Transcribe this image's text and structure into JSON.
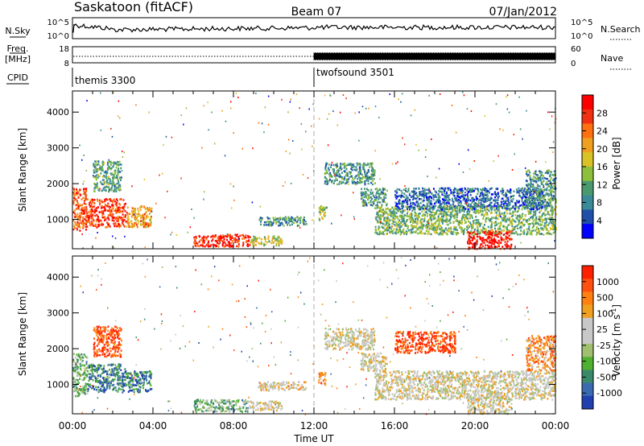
{
  "header": {
    "station": "Saskatoon (fitACF)",
    "beam": "Beam 07",
    "date": "07/Jan/2012"
  },
  "noise_panel": {
    "left_label": "N.Sky",
    "left_ticks": [
      "10^5",
      "10^0"
    ],
    "right_label": "N.Search",
    "right_ticks": [
      "10^5",
      "10^0"
    ]
  },
  "freq_panel": {
    "left_label_1": "Freq.",
    "left_label_2": "[MHz]",
    "left_ticks": [
      "18",
      "8"
    ],
    "right_label": "Nave",
    "right_ticks": [
      "60",
      "0"
    ]
  },
  "cpid_panel": {
    "label": "CPID",
    "segments": [
      {
        "name": "themis 3300",
        "start_hour": 0
      },
      {
        "name": "twofsound 3501",
        "start_hour": 12
      }
    ]
  },
  "chart_data": [
    {
      "type": "heatmap",
      "quantity": "Power",
      "ylabel": "Slant Range [km]",
      "ylim": [
        180,
        4590
      ],
      "yticks": [
        1000,
        2000,
        3000,
        4000
      ],
      "xlim_hours": [
        0,
        24
      ],
      "colorbar": {
        "label": "Power [dB]",
        "ticks": [
          "28",
          "24",
          "20",
          "16",
          "12",
          "8",
          "4"
        ],
        "colors": [
          "#0000ff",
          "#1f4fa8",
          "#3a8a9a",
          "#4a9a6e",
          "#8cbf3c",
          "#d9c225",
          "#f0a020",
          "#ff7010",
          "#f03010",
          "#ff0000"
        ]
      },
      "regions": [
        {
          "t0": 0.0,
          "t1": 0.7,
          "r0": 700,
          "r1": 1900,
          "level": 0.8
        },
        {
          "t0": 0.7,
          "t1": 2.6,
          "r0": 800,
          "r1": 1600,
          "level": 0.85
        },
        {
          "t0": 1.0,
          "t1": 2.4,
          "r0": 1800,
          "r1": 2650,
          "level": 0.35
        },
        {
          "t0": 2.6,
          "t1": 3.9,
          "r0": 800,
          "r1": 1400,
          "level": 0.65
        },
        {
          "t0": 6.0,
          "t1": 8.8,
          "r0": 260,
          "r1": 600,
          "level": 0.9
        },
        {
          "t0": 8.8,
          "t1": 10.4,
          "r0": 300,
          "r1": 560,
          "level": 0.5
        },
        {
          "t0": 9.2,
          "t1": 11.6,
          "r0": 850,
          "r1": 1100,
          "level": 0.3
        },
        {
          "t0": 12.2,
          "t1": 12.6,
          "r0": 1000,
          "r1": 1400,
          "level": 0.5
        },
        {
          "t0": 12.5,
          "t1": 15.0,
          "r0": 2000,
          "r1": 2600,
          "level": 0.3
        },
        {
          "t0": 14.3,
          "t1": 15.6,
          "r0": 1400,
          "r1": 1900,
          "level": 0.3
        },
        {
          "t0": 15.0,
          "t1": 24.0,
          "r0": 600,
          "r1": 1400,
          "level": 0.4
        },
        {
          "t0": 16.0,
          "t1": 23.5,
          "r0": 1300,
          "r1": 1900,
          "level": 0.2
        },
        {
          "t0": 19.6,
          "t1": 21.8,
          "r0": 200,
          "r1": 700,
          "level": 0.95
        },
        {
          "t0": 22.5,
          "t1": 24.0,
          "r0": 1400,
          "r1": 2400,
          "level": 0.3
        }
      ]
    },
    {
      "type": "heatmap",
      "quantity": "Velocity",
      "ylabel": "Slant Range [km]",
      "ylim": [
        180,
        4590
      ],
      "yticks": [
        1000,
        2000,
        3000,
        4000
      ],
      "xlim_hours": [
        0,
        24
      ],
      "xticks": [
        "00:00",
        "04:00",
        "08:00",
        "12:00",
        "16:00",
        "20:00",
        "00:00"
      ],
      "xlabel": "Time UT",
      "colorbar": {
        "label": "Velocity [m s^-1]",
        "ticks": [
          "1000",
          "500",
          "100",
          "25",
          "-25",
          "-100",
          "-500",
          "-1000"
        ],
        "colors": [
          "#2040b0",
          "#3a6ab0",
          "#3a8a6a",
          "#50b030",
          "#a0c070",
          "#c8c8c8",
          "#c8c8c8",
          "#f0a020",
          "#ff8010",
          "#ff5010",
          "#ff2000"
        ]
      },
      "regions": [
        {
          "t0": 0.0,
          "t1": 0.7,
          "r0": 700,
          "r1": 1900,
          "level": 0.35
        },
        {
          "t0": 0.7,
          "t1": 2.6,
          "r0": 800,
          "r1": 1600,
          "level": 0.2
        },
        {
          "t0": 1.0,
          "t1": 2.4,
          "r0": 1800,
          "r1": 2650,
          "level": 0.88
        },
        {
          "t0": 2.6,
          "t1": 3.9,
          "r0": 800,
          "r1": 1400,
          "level": 0.18
        },
        {
          "t0": 6.0,
          "t1": 8.8,
          "r0": 260,
          "r1": 600,
          "level": 0.32
        },
        {
          "t0": 8.8,
          "t1": 10.4,
          "r0": 300,
          "r1": 560,
          "level": 0.55
        },
        {
          "t0": 9.2,
          "t1": 11.6,
          "r0": 850,
          "r1": 1100,
          "level": 0.6
        },
        {
          "t0": 12.2,
          "t1": 12.6,
          "r0": 1000,
          "r1": 1400,
          "level": 0.75
        },
        {
          "t0": 12.5,
          "t1": 15.0,
          "r0": 2000,
          "r1": 2600,
          "level": 0.55
        },
        {
          "t0": 14.3,
          "t1": 15.6,
          "r0": 1400,
          "r1": 1900,
          "level": 0.55
        },
        {
          "t0": 15.0,
          "t1": 24.0,
          "r0": 600,
          "r1": 1400,
          "level": 0.55
        },
        {
          "t0": 16.0,
          "t1": 19.0,
          "r0": 1900,
          "r1": 2500,
          "level": 0.9
        },
        {
          "t0": 19.6,
          "t1": 21.8,
          "r0": 200,
          "r1": 700,
          "level": 0.55
        },
        {
          "t0": 22.5,
          "t1": 24.0,
          "r0": 1400,
          "r1": 2400,
          "level": 0.75
        }
      ]
    }
  ]
}
